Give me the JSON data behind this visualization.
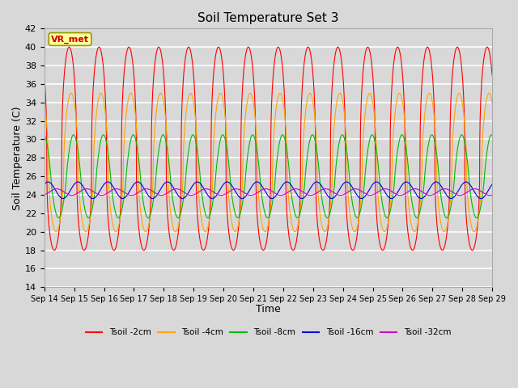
{
  "title": "Soil Temperature Set 3",
  "xlabel": "Time",
  "ylabel": "Soil Temperature (C)",
  "ylim": [
    14,
    42
  ],
  "yticks": [
    14,
    16,
    18,
    20,
    22,
    24,
    26,
    28,
    30,
    32,
    34,
    36,
    38,
    40,
    42
  ],
  "n_days": 15,
  "bg_color": "#d8d8d8",
  "plot_bg_color": "#d8d8d8",
  "grid_color": "white",
  "annotation_text": "VR_met",
  "annotation_bg": "#ffff99",
  "annotation_border": "#999900",
  "annotation_text_color": "#cc0000",
  "series": [
    {
      "label": "Tsoil -2cm",
      "color": "#ff0000",
      "mean": 27.5,
      "amp_up": 12.5,
      "amp_down": 9.5,
      "lag_hours": 0.0,
      "sharpness": 2.5
    },
    {
      "label": "Tsoil -4cm",
      "color": "#ffa500",
      "mean": 26.5,
      "amp_up": 8.5,
      "amp_down": 6.5,
      "lag_hours": 1.5,
      "sharpness": 1.8
    },
    {
      "label": "Tsoil -8cm",
      "color": "#00bb00",
      "mean": 25.5,
      "amp_up": 5.0,
      "amp_down": 4.0,
      "lag_hours": 3.5,
      "sharpness": 1.2
    },
    {
      "label": "Tsoil -16cm",
      "color": "#0000dd",
      "mean": 24.5,
      "amp_up": 0.9,
      "amp_down": 0.9,
      "lag_hours": 7.0,
      "sharpness": 1.0
    },
    {
      "label": "Tsoil -32cm",
      "color": "#cc00cc",
      "mean": 24.3,
      "amp_up": 0.35,
      "amp_down": 0.35,
      "lag_hours": 14.0,
      "sharpness": 1.0
    }
  ]
}
